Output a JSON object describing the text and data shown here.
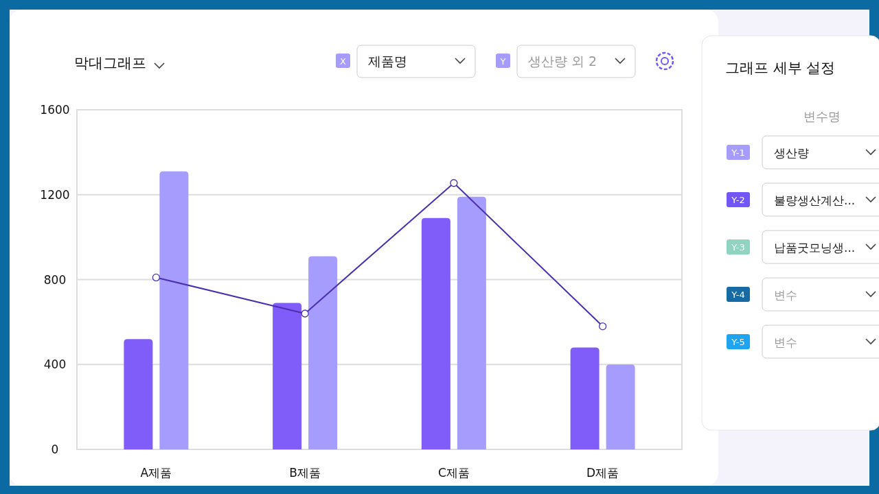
{
  "chart_data": {
    "type": "bar",
    "categories": [
      "A제품",
      "B제품",
      "C제품",
      "D제품"
    ],
    "series": [
      {
        "color": "#805df9",
        "values": [
          520,
          690,
          1090,
          480
        ]
      },
      {
        "color": "#a59cfd",
        "values": [
          1310,
          910,
          1190,
          400
        ]
      },
      {
        "type": "line",
        "color": "#4a2fb0",
        "values": [
          810,
          640,
          1255,
          580
        ]
      }
    ],
    "ylim": [
      0,
      1600
    ],
    "yticks": [
      0,
      400,
      800,
      1200,
      1600
    ],
    "grid": "y",
    "marker": "circle",
    "line_style": "solid",
    "annotations": [
      "막대그래프",
      "X",
      "제품명",
      "Y",
      "생산량 외 2",
      "그래프 세부 설정",
      "변수명",
      "Y-1",
      "생산량",
      "Y-2",
      "불량생산계산...",
      "Y-3",
      "납품굿모닝생...",
      "Y-4",
      "변수",
      "Y-5",
      "변수"
    ]
  }
}
